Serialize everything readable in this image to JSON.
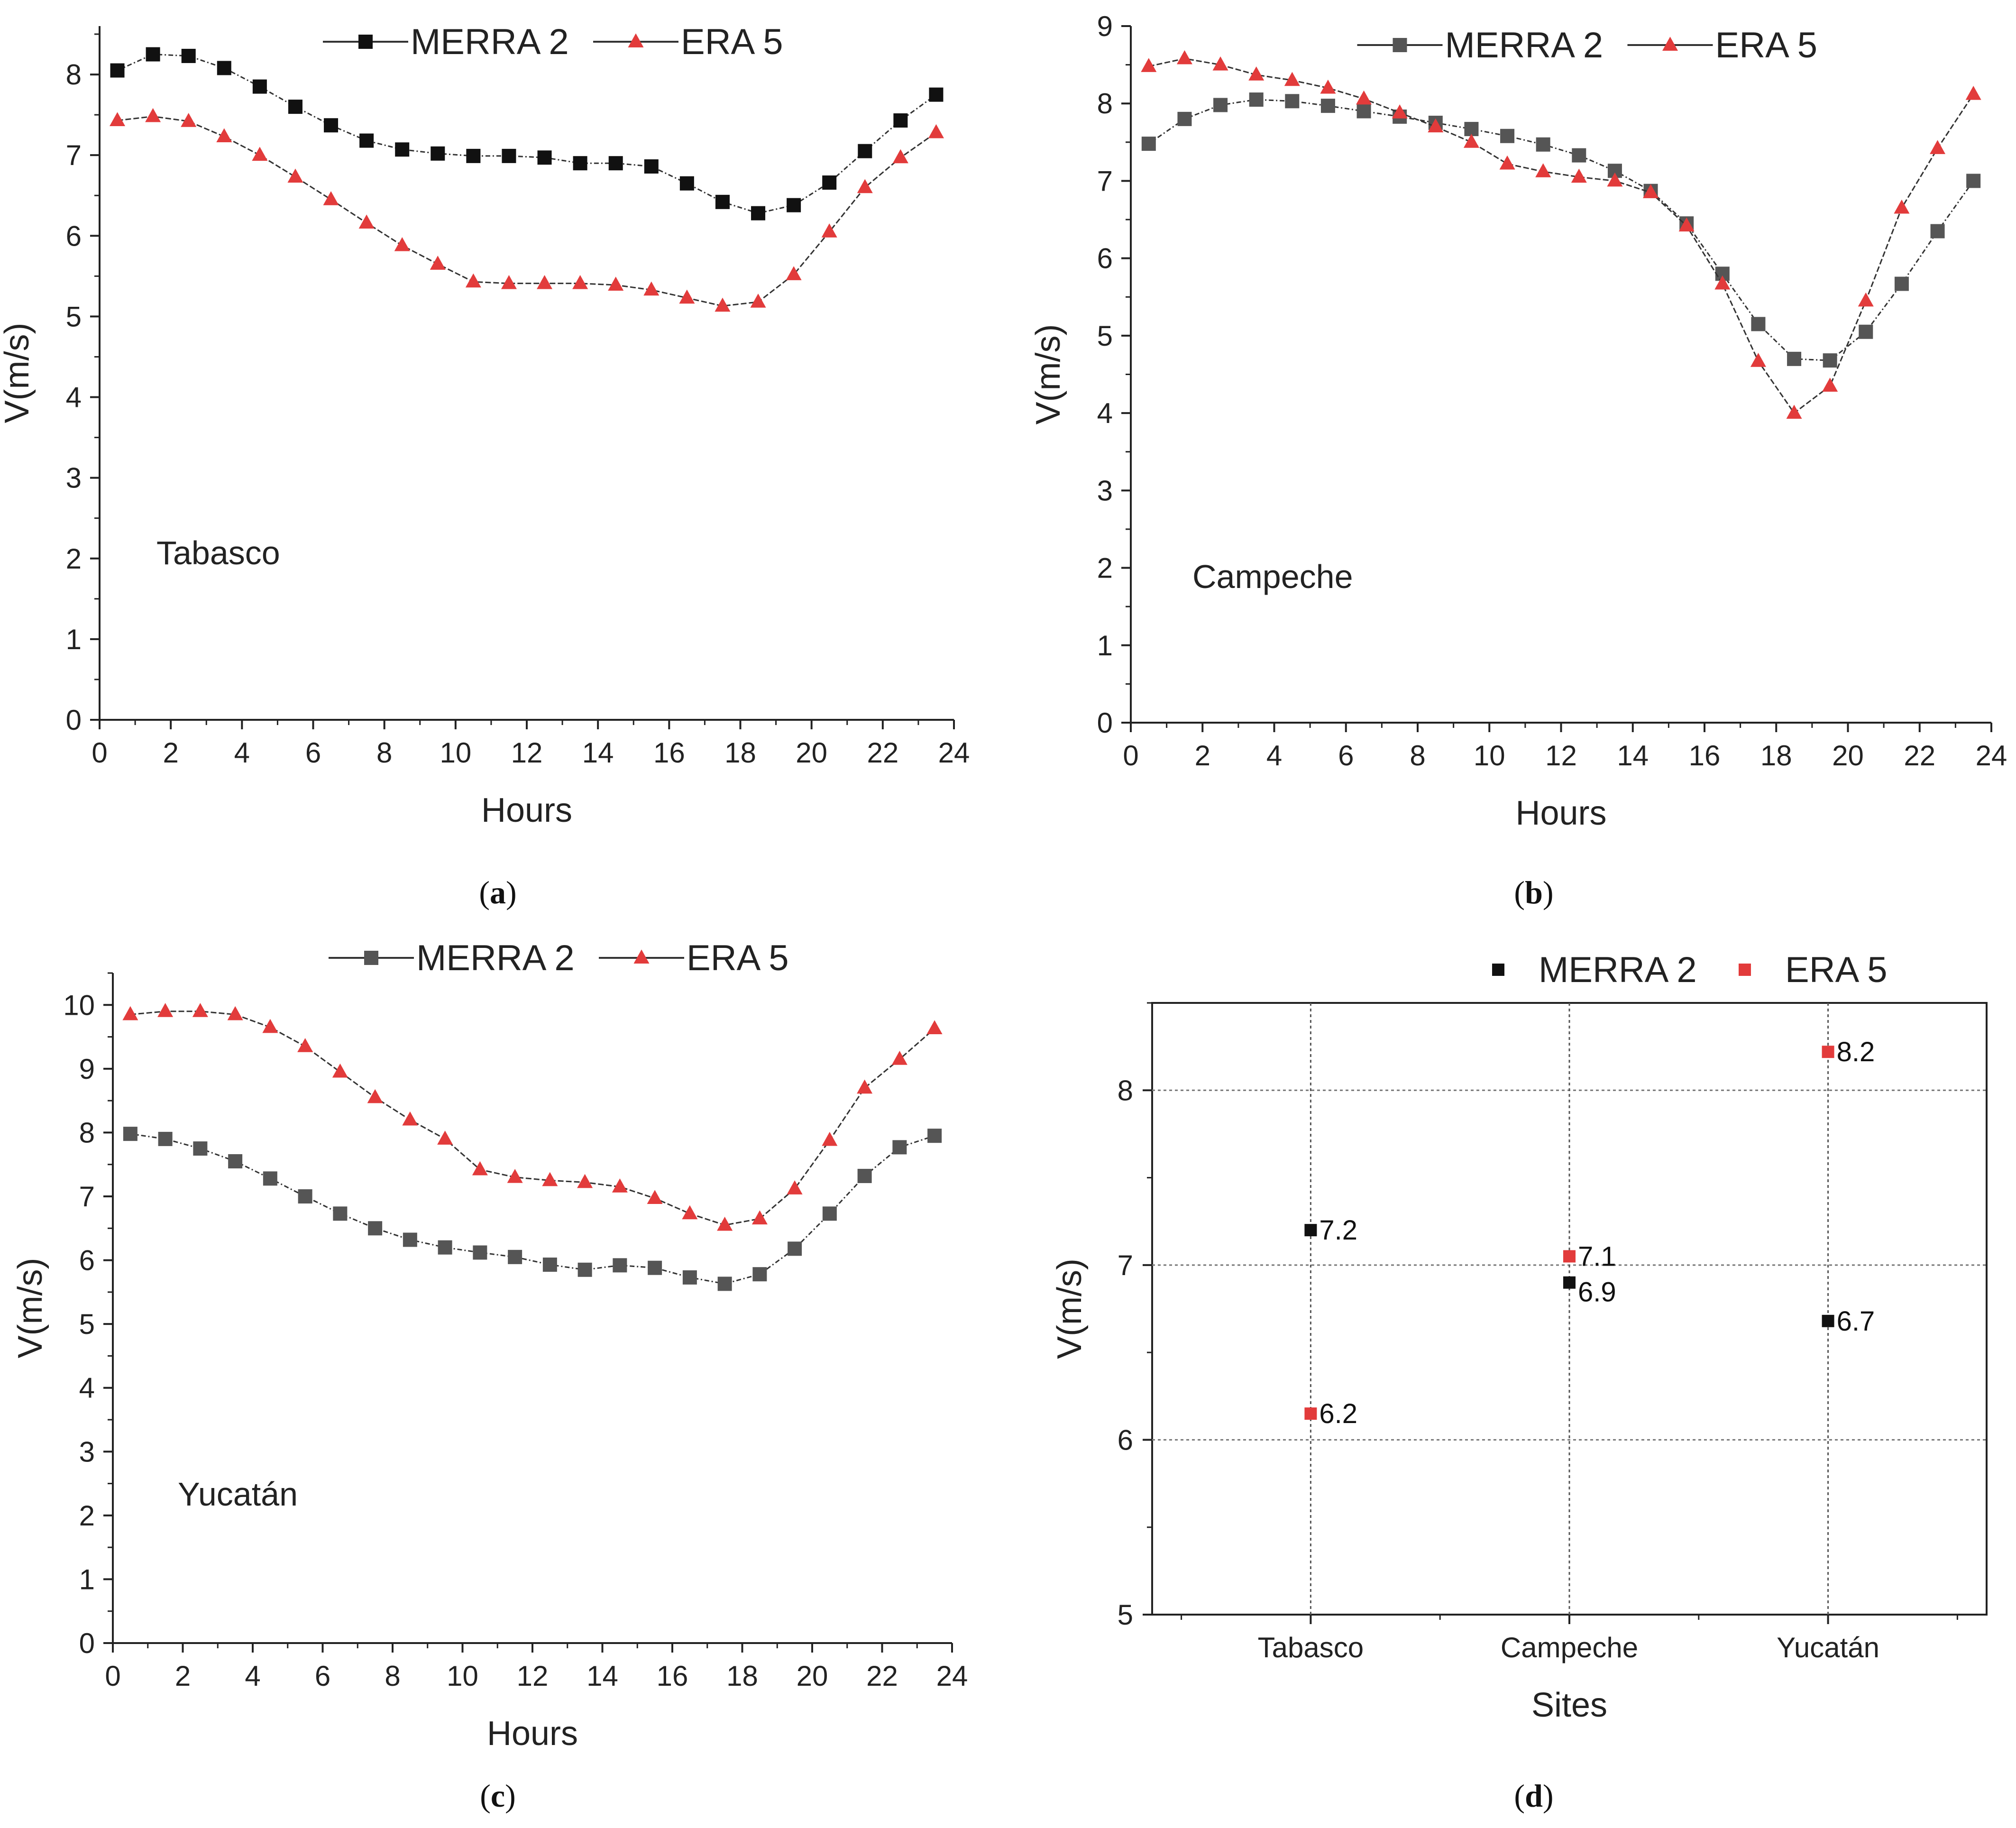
{
  "chart_data": [
    {
      "type": "line",
      "panel": "a",
      "caption_open": "(",
      "caption_letter": "a",
      "caption_close": ")",
      "site_label": "Tabasco",
      "xlabel": "Hours",
      "ylabel": "V(m/s)",
      "xlim": [
        0,
        24
      ],
      "ylim": [
        0,
        8.6
      ],
      "xticks": [
        0,
        2,
        4,
        6,
        8,
        10,
        12,
        14,
        16,
        18,
        20,
        22,
        24
      ],
      "yticks": [
        0,
        1,
        2,
        3,
        4,
        5,
        6,
        7,
        8
      ],
      "x": [
        0.5,
        1.5,
        2.5,
        3.5,
        4.5,
        5.5,
        6.5,
        7.5,
        8.5,
        9.5,
        10.5,
        11.5,
        12.5,
        13.5,
        14.5,
        15.5,
        16.5,
        17.5,
        18.5,
        19.5,
        20.5,
        21.5,
        22.5,
        23.5
      ],
      "series": [
        {
          "name": "MERRA 2",
          "marker": "square",
          "color": "#111111",
          "values": [
            8.05,
            8.25,
            8.23,
            8.08,
            7.85,
            7.6,
            7.37,
            7.18,
            7.07,
            7.02,
            6.99,
            6.99,
            6.97,
            6.9,
            6.9,
            6.86,
            6.65,
            6.42,
            6.28,
            6.38,
            6.66,
            7.05,
            7.43,
            7.75
          ]
        },
        {
          "name": "ERA 5",
          "marker": "triangle",
          "color": "#e23b3b",
          "values": [
            7.43,
            7.48,
            7.42,
            7.23,
            7.0,
            6.73,
            6.45,
            6.16,
            5.88,
            5.65,
            5.43,
            5.41,
            5.41,
            5.41,
            5.39,
            5.33,
            5.23,
            5.13,
            5.18,
            5.52,
            6.05,
            6.6,
            6.97,
            7.28
          ]
        }
      ]
    },
    {
      "type": "line",
      "panel": "b",
      "caption_open": "(",
      "caption_letter": "b",
      "caption_close": ")",
      "site_label": "Campeche",
      "xlabel": "Hours",
      "ylabel": "V(m/s)",
      "xlim": [
        0,
        24
      ],
      "ylim": [
        0,
        9
      ],
      "xticks": [
        0,
        2,
        4,
        6,
        8,
        10,
        12,
        14,
        16,
        18,
        20,
        22,
        24
      ],
      "yticks": [
        0,
        1,
        2,
        3,
        4,
        5,
        6,
        7,
        8,
        9
      ],
      "x": [
        0.5,
        1.5,
        2.5,
        3.5,
        4.5,
        5.5,
        6.5,
        7.5,
        8.5,
        9.5,
        10.5,
        11.5,
        12.5,
        13.5,
        14.5,
        15.5,
        16.5,
        17.5,
        18.5,
        19.5,
        20.5,
        21.5,
        22.5,
        23.5
      ],
      "series": [
        {
          "name": "MERRA 2",
          "marker": "square",
          "color": "#555555",
          "values": [
            7.48,
            7.8,
            7.98,
            8.05,
            8.03,
            7.97,
            7.9,
            7.83,
            7.75,
            7.67,
            7.58,
            7.47,
            7.33,
            7.13,
            6.87,
            6.45,
            5.8,
            5.15,
            4.7,
            4.68,
            5.05,
            5.67,
            6.35,
            7.0
          ]
        },
        {
          "name": "ERA 5",
          "marker": "triangle",
          "color": "#e23b3b",
          "values": [
            8.48,
            8.58,
            8.5,
            8.37,
            8.3,
            8.2,
            8.06,
            7.88,
            7.7,
            7.5,
            7.22,
            7.12,
            7.05,
            7.0,
            6.85,
            6.42,
            5.67,
            4.67,
            4.0,
            4.35,
            5.45,
            6.65,
            7.42,
            8.12
          ]
        }
      ]
    },
    {
      "type": "line",
      "panel": "c",
      "caption_open": "(",
      "caption_letter": "c",
      "caption_close": ")",
      "site_label": "Yucatán",
      "xlabel": "Hours",
      "ylabel": "V(m/s)",
      "xlim": [
        0,
        24
      ],
      "ylim": [
        0,
        10.5
      ],
      "xticks": [
        0,
        2,
        4,
        6,
        8,
        10,
        12,
        14,
        16,
        18,
        20,
        22,
        24
      ],
      "yticks": [
        0,
        1,
        2,
        3,
        4,
        5,
        6,
        7,
        8,
        9,
        10
      ],
      "x": [
        0.5,
        1.5,
        2.5,
        3.5,
        4.5,
        5.5,
        6.5,
        7.5,
        8.5,
        9.5,
        10.5,
        11.5,
        12.5,
        13.5,
        14.5,
        15.5,
        16.5,
        17.5,
        18.5,
        19.5,
        20.5,
        21.5,
        22.5,
        23.5
      ],
      "series": [
        {
          "name": "MERRA 2",
          "marker": "square",
          "color": "#555555",
          "values": [
            7.98,
            7.9,
            7.75,
            7.55,
            7.28,
            7.0,
            6.73,
            6.5,
            6.32,
            6.2,
            6.12,
            6.05,
            5.93,
            5.85,
            5.92,
            5.88,
            5.73,
            5.63,
            5.78,
            6.18,
            6.73,
            7.32,
            7.77,
            7.95
          ]
        },
        {
          "name": "ERA 5",
          "marker": "triangle",
          "color": "#e23b3b",
          "values": [
            9.85,
            9.9,
            9.9,
            9.85,
            9.65,
            9.35,
            8.95,
            8.55,
            8.2,
            7.9,
            7.42,
            7.3,
            7.25,
            7.22,
            7.15,
            6.97,
            6.73,
            6.55,
            6.65,
            7.12,
            7.88,
            8.7,
            9.15,
            9.63
          ]
        }
      ]
    },
    {
      "type": "scatter",
      "panel": "d",
      "caption_open": "(",
      "caption_letter": "d",
      "caption_close": ")",
      "xlabel": "Sites",
      "ylabel": "V(m/s)",
      "categories": [
        "Tabasco",
        "Campeche",
        "Yucatán"
      ],
      "ylim": [
        5,
        8.5
      ],
      "yticks": [
        5,
        6,
        7,
        8
      ],
      "grid": true,
      "series": [
        {
          "name": "MERRA 2",
          "marker": "square",
          "color": "#111111",
          "values": [
            7.2,
            6.9,
            6.68
          ],
          "labels": [
            "7.2",
            "6.9",
            "6.7"
          ]
        },
        {
          "name": "ERA 5",
          "marker": "square",
          "color": "#e23b3b",
          "values": [
            6.15,
            7.05,
            8.22
          ],
          "labels": [
            "6.2",
            "7.1",
            "8.2"
          ]
        }
      ]
    }
  ]
}
